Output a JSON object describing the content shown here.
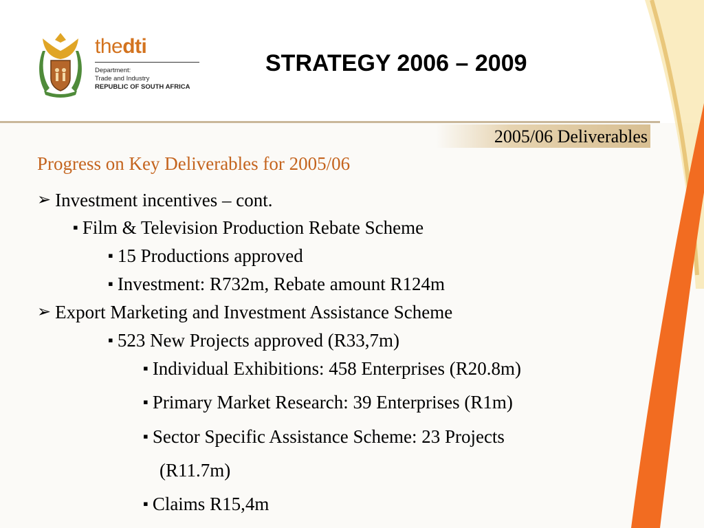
{
  "logo": {
    "brand_the": "the",
    "brand_dti": "dti",
    "line1": "Department:",
    "line2": "Trade and Industry",
    "line3": "REPUBLIC OF SOUTH AFRICA"
  },
  "title": "STRATEGY 2006 – 2009",
  "section_tag": "2005/06 Deliverables",
  "subtitle": "Progress on Key Deliverables for 2005/06",
  "markers": {
    "level1": "➢",
    "level2": "▪"
  },
  "bullets": [
    {
      "level": 1,
      "text": "Investment incentives – cont."
    },
    {
      "level": 2,
      "text": "Film & Television Production Rebate Scheme"
    },
    {
      "level": 3,
      "text": "15 Productions approved"
    },
    {
      "level": 3,
      "text": "Investment: R732m, Rebate amount R124m"
    },
    {
      "level": 1,
      "text": "Export Marketing and Investment Assistance Scheme"
    },
    {
      "level": 3,
      "text": "523 New Projects approved (R33,7m)"
    },
    {
      "level": 4,
      "text": "Individual Exhibitions: 458 Enterprises (R20.8m)"
    },
    {
      "level": 4,
      "text": "Primary Market Research: 39 Enterprises (R1m)"
    },
    {
      "level": 4,
      "text": "Sector Specific Assistance Scheme: 23 Projects"
    },
    {
      "level": 5,
      "text": "(R11.7m)"
    },
    {
      "level": 4,
      "text": "Claims R15,4m"
    }
  ],
  "colors": {
    "accent_orange": "#f26c21",
    "subtitle_orange": "#c4641e",
    "tag_tan": "#d8bf92",
    "curve_gold": "#f5d98a"
  }
}
